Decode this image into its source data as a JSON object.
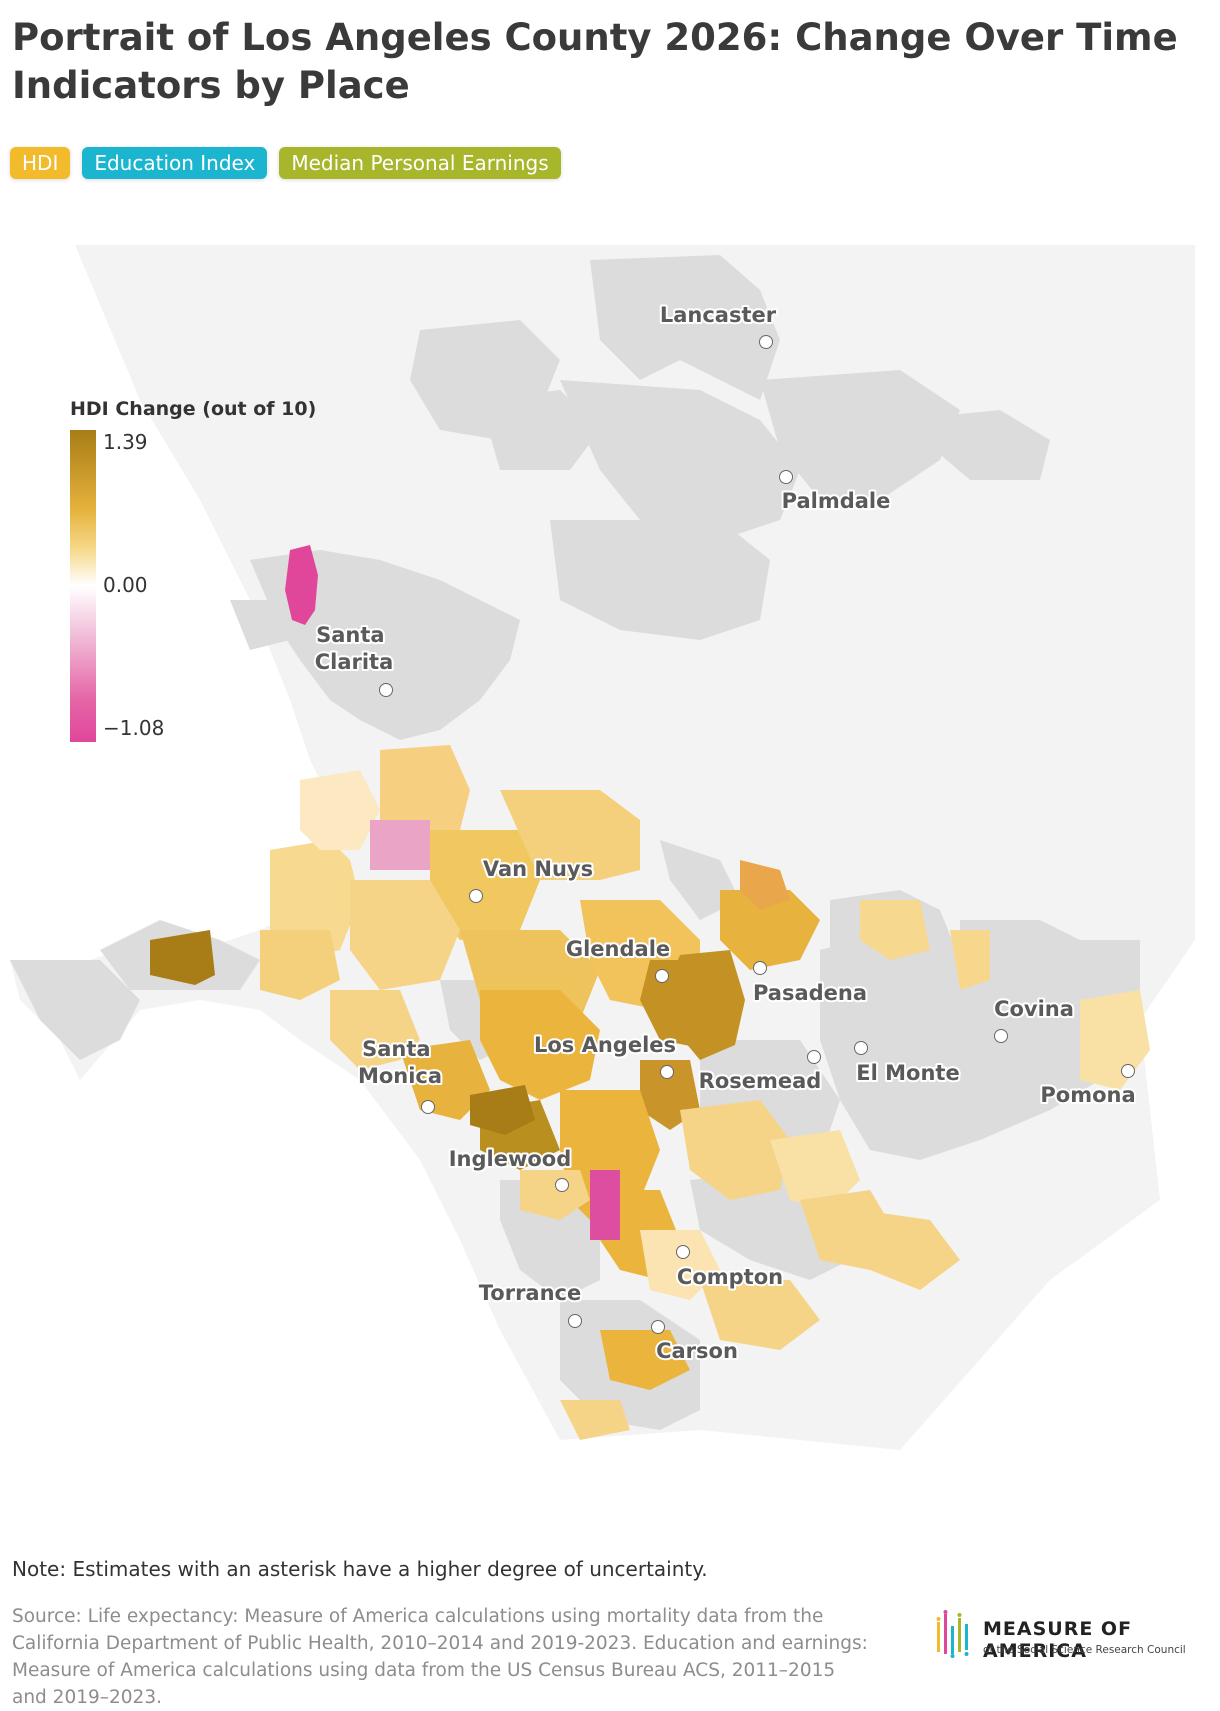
{
  "title": "Portrait of Los Angeles County 2026: Change Over Time Indicators by Place",
  "tabs": [
    {
      "label": "HDI",
      "color": "#f2bb2c"
    },
    {
      "label": "Education Index",
      "color": "#1bb5cf"
    },
    {
      "label": "Median Personal Earnings",
      "color": "#a8b62b"
    }
  ],
  "legend": {
    "title": "HDI Change (out of 10)",
    "max": "1.39",
    "mid": "0.00",
    "min": "−1.08"
  },
  "places": [
    {
      "name": "Lancaster",
      "label": "Lancaster"
    },
    {
      "name": "Palmdale",
      "label": "Palmdale"
    },
    {
      "name": "Santa Clarita",
      "label": "Santa\nClarita"
    },
    {
      "name": "Van Nuys",
      "label": "Van Nuys"
    },
    {
      "name": "Glendale",
      "label": "Glendale"
    },
    {
      "name": "Pasadena",
      "label": "Pasadena"
    },
    {
      "name": "Covina",
      "label": "Covina"
    },
    {
      "name": "Los Angeles",
      "label": "Los Angeles"
    },
    {
      "name": "Rosemead",
      "label": "Rosemead"
    },
    {
      "name": "El Monte",
      "label": "El Monte"
    },
    {
      "name": "Pomona",
      "label": "Pomona"
    },
    {
      "name": "Santa Monica",
      "label": "Santa\nMonica"
    },
    {
      "name": "Inglewood",
      "label": "Inglewood"
    },
    {
      "name": "Compton",
      "label": "Compton"
    },
    {
      "name": "Torrance",
      "label": "Torrance"
    },
    {
      "name": "Carson",
      "label": "Carson"
    }
  ],
  "note": "Note: Estimates with an asterisk have a higher degree of uncertainty.",
  "source": "Source: Life expectancy: Measure of America calculations using mortality data from the California Department of Public Health, 2010–2014 and 2019-2023. Education and earnings: Measure of America calculations using data from the US Census Bureau ACS, 2011–2015 and 2019–2023.",
  "logo": {
    "name": "MEASURE OF AMERICA",
    "subtitle": "of the Social Science Research Council"
  }
}
